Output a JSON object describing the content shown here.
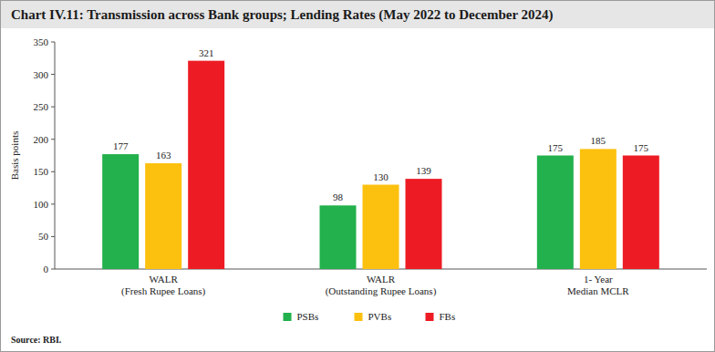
{
  "chart_data": {
    "type": "bar",
    "title": "Chart IV.11: Transmission across Bank groups; Lending Rates (May 2022 to December 2024)",
    "y_label": "Basis points",
    "source": "Source: RBI.",
    "categories": [
      "WALR\n(Fresh Rupee Loans)",
      "WALR\n(Outstanding Rupee Loans)",
      "1- Year\nMedian MCLR"
    ],
    "series": [
      {
        "name": "PSBs",
        "color": "#22b14c",
        "values": [
          177,
          98,
          175
        ]
      },
      {
        "name": "PVBs",
        "color": "#fcc10f",
        "values": [
          163,
          130,
          185
        ]
      },
      {
        "name": "FBs",
        "color": "#ed1c24",
        "values": [
          321,
          139,
          175
        ]
      }
    ],
    "ylim": [
      0,
      350
    ],
    "yticks": [
      0,
      50,
      100,
      150,
      200,
      250,
      300,
      350
    ],
    "grid": false,
    "data_labels": true,
    "legend": "bottom"
  }
}
